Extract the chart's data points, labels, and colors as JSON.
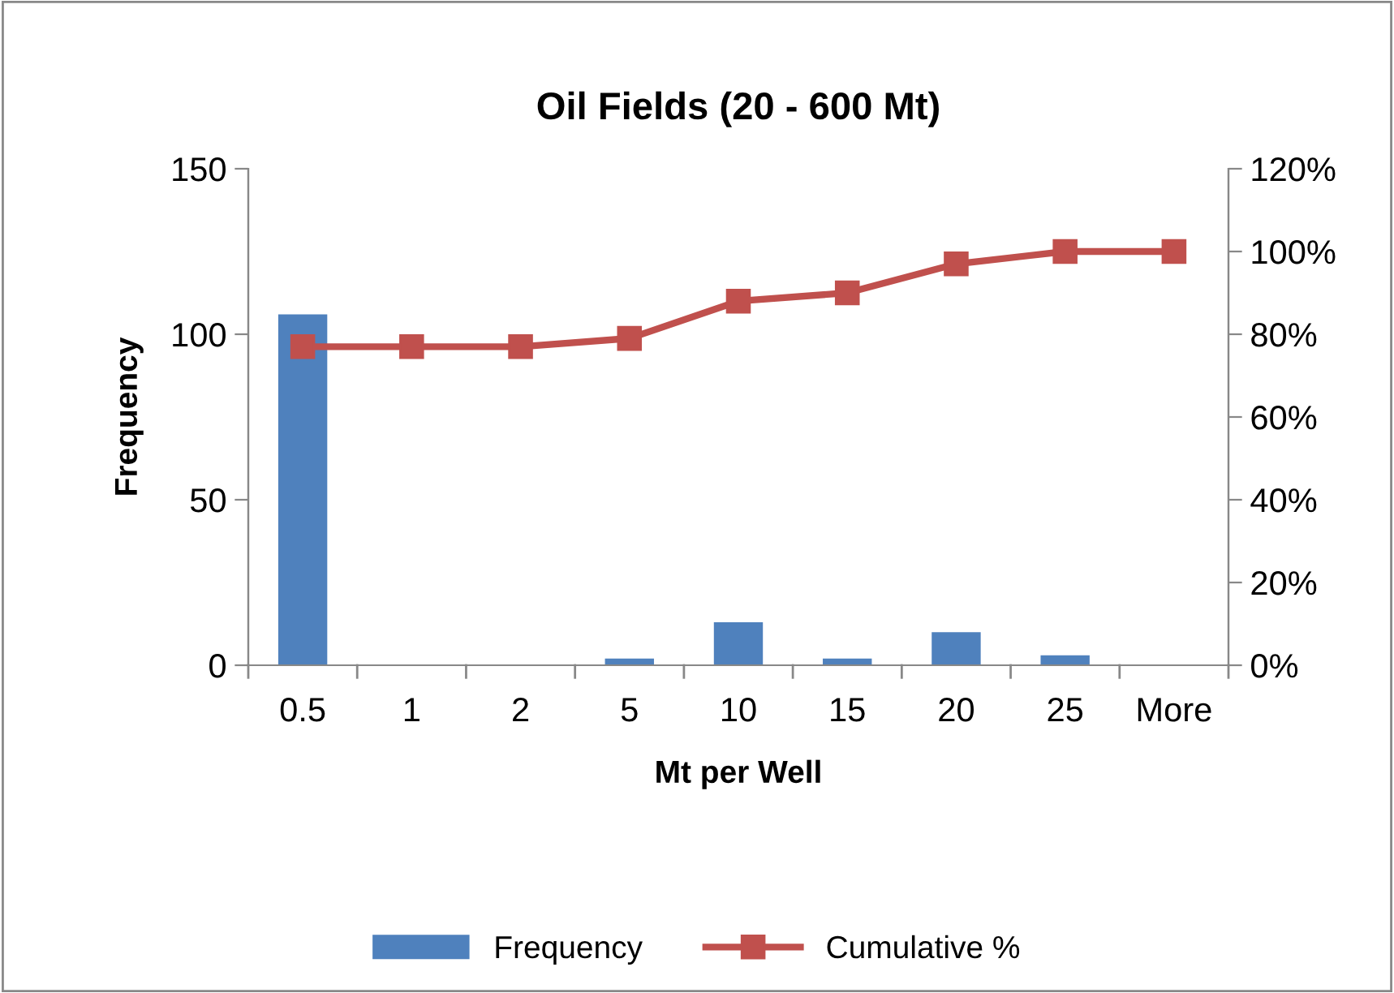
{
  "chart_data": {
    "type": "bar",
    "title": "Oil Fields (20 - 600 Mt)",
    "xlabel": "Mt per Well",
    "ylabel": "Frequency",
    "categories": [
      "0.5",
      "1",
      "2",
      "5",
      "10",
      "15",
      "20",
      "25",
      "More"
    ],
    "series": [
      {
        "name": "Frequency",
        "color": "#4f81bd",
        "values": [
          106,
          0,
          0,
          2,
          13,
          2,
          10,
          3,
          0
        ]
      },
      {
        "name": "Cumulative %",
        "type": "line",
        "axis": "y2",
        "color": "#c0504d",
        "marker": "square",
        "values": [
          77,
          77,
          77,
          79,
          88,
          90,
          97,
          100,
          100
        ]
      }
    ],
    "ylim": [
      0,
      150
    ],
    "yticks": [
      0,
      50,
      100,
      150
    ],
    "y2lim": [
      0,
      120
    ],
    "y2ticks": [
      {
        "value": 0,
        "label": "0%"
      },
      {
        "value": 20,
        "label": "20%"
      },
      {
        "value": 40,
        "label": "40%"
      },
      {
        "value": 60,
        "label": "60%"
      },
      {
        "value": 80,
        "label": "80%"
      },
      {
        "value": 100,
        "label": "100%"
      },
      {
        "value": 120,
        "label": "120%"
      }
    ],
    "grid": false,
    "legend": "bottom"
  }
}
